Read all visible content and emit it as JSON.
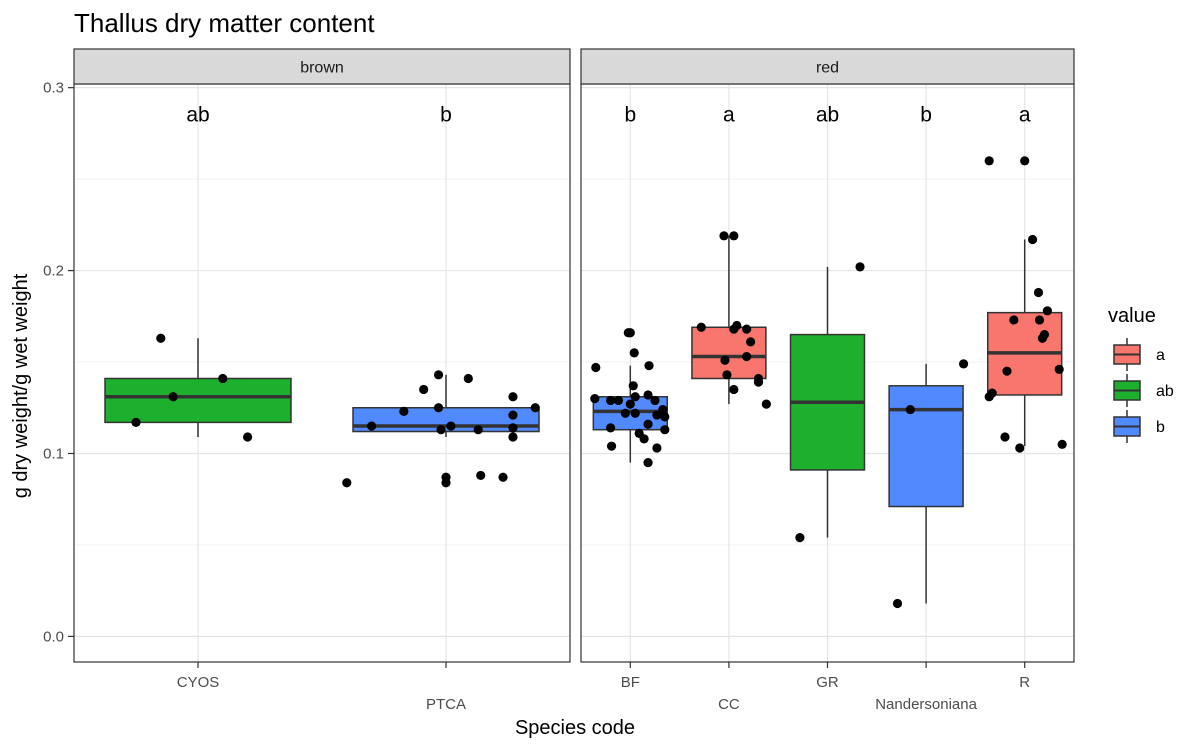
{
  "chart_data": {
    "type": "box",
    "title": "Thallus dry matter content",
    "xlabel": "Species code",
    "ylabel": "g dry weight/g wet weight",
    "ylim": [
      -0.014,
      0.302
    ],
    "yticks": [
      0.0,
      0.1,
      0.2,
      0.3
    ],
    "ytick_labels": [
      "0.0",
      "0.1",
      "0.2",
      "0.3"
    ],
    "grid": true,
    "legend": {
      "title": "value",
      "placement": "right",
      "entries": [
        {
          "label": "a",
          "color": "#F8766D"
        },
        {
          "label": "ab",
          "color": "#1DB02E"
        },
        {
          "label": "b",
          "color": "#5189FF"
        }
      ]
    },
    "panels": [
      {
        "strip": "brown",
        "categories": [
          "CYOS",
          "PTCA"
        ],
        "boxes": [
          {
            "category": "CYOS",
            "group": "ab",
            "sig": "ab",
            "q1": 0.117,
            "median": 0.131,
            "q3": 0.141,
            "whisker_low": 0.109,
            "whisker_high": 0.163,
            "points": [
              {
                "dx": -0.25,
                "y": 0.117
              },
              {
                "dx": -0.1,
                "y": 0.131
              },
              {
                "dx": 0.1,
                "y": 0.141
              },
              {
                "dx": 0.2,
                "y": 0.109
              },
              {
                "dx": -0.15,
                "y": 0.163
              }
            ]
          },
          {
            "category": "PTCA",
            "group": "b",
            "sig": "b",
            "q1": 0.112,
            "median": 0.115,
            "q3": 0.125,
            "whisker_low": 0.109,
            "whisker_high": 0.143,
            "points": [
              {
                "dx": -0.4,
                "y": 0.084
              },
              {
                "dx": -0.3,
                "y": 0.115
              },
              {
                "dx": -0.17,
                "y": 0.123
              },
              {
                "dx": -0.09,
                "y": 0.135
              },
              {
                "dx": -0.03,
                "y": 0.143
              },
              {
                "dx": -0.03,
                "y": 0.125
              },
              {
                "dx": 0.0,
                "y": 0.087
              },
              {
                "dx": 0.0,
                "y": 0.084
              },
              {
                "dx": -0.02,
                "y": 0.113
              },
              {
                "dx": 0.02,
                "y": 0.115
              },
              {
                "dx": 0.09,
                "y": 0.141
              },
              {
                "dx": 0.13,
                "y": 0.113
              },
              {
                "dx": 0.14,
                "y": 0.088
              },
              {
                "dx": 0.23,
                "y": 0.087
              },
              {
                "dx": 0.27,
                "y": 0.131
              },
              {
                "dx": 0.27,
                "y": 0.121
              },
              {
                "dx": 0.27,
                "y": 0.114
              },
              {
                "dx": 0.27,
                "y": 0.109
              },
              {
                "dx": 0.36,
                "y": 0.125
              }
            ]
          }
        ]
      },
      {
        "strip": "red",
        "categories": [
          "BF",
          "CC",
          "GR",
          "Nandersoniana",
          "R"
        ],
        "boxes": [
          {
            "category": "BF",
            "group": "b",
            "sig": "b",
            "q1": 0.113,
            "median": 0.123,
            "q3": 0.131,
            "whisker_low": 0.095,
            "whisker_high": 0.148,
            "points": [
              {
                "dx": -0.35,
                "y": 0.147
              },
              {
                "dx": -0.36,
                "y": 0.13
              },
              {
                "dx": -0.2,
                "y": 0.129
              },
              {
                "dx": -0.12,
                "y": 0.129
              },
              {
                "dx": -0.2,
                "y": 0.114
              },
              {
                "dx": -0.19,
                "y": 0.104
              },
              {
                "dx": -0.02,
                "y": 0.166
              },
              {
                "dx": 0.0,
                "y": 0.166
              },
              {
                "dx": 0.04,
                "y": 0.155
              },
              {
                "dx": 0.03,
                "y": 0.137
              },
              {
                "dx": 0.0,
                "y": 0.127
              },
              {
                "dx": -0.05,
                "y": 0.122
              },
              {
                "dx": 0.05,
                "y": 0.131
              },
              {
                "dx": 0.05,
                "y": 0.122
              },
              {
                "dx": 0.09,
                "y": 0.111
              },
              {
                "dx": 0.14,
                "y": 0.108
              },
              {
                "dx": 0.18,
                "y": 0.132
              },
              {
                "dx": 0.18,
                "y": 0.116
              },
              {
                "dx": 0.18,
                "y": 0.095
              },
              {
                "dx": 0.19,
                "y": 0.148
              },
              {
                "dx": 0.25,
                "y": 0.129
              },
              {
                "dx": 0.27,
                "y": 0.121
              },
              {
                "dx": 0.27,
                "y": 0.103
              },
              {
                "dx": 0.33,
                "y": 0.124
              },
              {
                "dx": 0.35,
                "y": 0.113
              },
              {
                "dx": 0.35,
                "y": 0.12
              }
            ]
          },
          {
            "category": "CC",
            "group": "a",
            "sig": "a",
            "q1": 0.141,
            "median": 0.153,
            "q3": 0.169,
            "whisker_low": 0.127,
            "whisker_high": 0.219,
            "points": [
              {
                "dx": -0.28,
                "y": 0.169
              },
              {
                "dx": -0.05,
                "y": 0.219
              },
              {
                "dx": 0.05,
                "y": 0.219
              },
              {
                "dx": 0.08,
                "y": 0.17
              },
              {
                "dx": -0.04,
                "y": 0.151
              },
              {
                "dx": -0.02,
                "y": 0.143
              },
              {
                "dx": 0.05,
                "y": 0.135
              },
              {
                "dx": 0.05,
                "y": 0.168
              },
              {
                "dx": 0.18,
                "y": 0.168
              },
              {
                "dx": 0.18,
                "y": 0.153
              },
              {
                "dx": 0.22,
                "y": 0.161
              },
              {
                "dx": 0.3,
                "y": 0.141
              },
              {
                "dx": 0.3,
                "y": 0.139
              },
              {
                "dx": 0.38,
                "y": 0.127
              }
            ]
          },
          {
            "category": "GR",
            "group": "ab",
            "sig": "ab",
            "q1": 0.091,
            "median": 0.128,
            "q3": 0.165,
            "whisker_low": 0.054,
            "whisker_high": 0.202,
            "points": [
              {
                "dx": -0.28,
                "y": 0.054
              },
              {
                "dx": 0.33,
                "y": 0.202
              }
            ]
          },
          {
            "category": "Nandersoniana",
            "group": "b",
            "sig": "b",
            "q1": 0.071,
            "median": 0.124,
            "q3": 0.137,
            "whisker_low": 0.018,
            "whisker_high": 0.149,
            "points": [
              {
                "dx": -0.29,
                "y": 0.018
              },
              {
                "dx": -0.16,
                "y": 0.124
              },
              {
                "dx": 0.38,
                "y": 0.149
              }
            ]
          },
          {
            "category": "R",
            "group": "a",
            "sig": "a",
            "q1": 0.132,
            "median": 0.155,
            "q3": 0.177,
            "whisker_low": 0.104,
            "whisker_high": 0.217,
            "points": [
              {
                "dx": -0.36,
                "y": 0.26
              },
              {
                "dx": 0.0,
                "y": 0.26
              },
              {
                "dx": 0.08,
                "y": 0.217
              },
              {
                "dx": 0.14,
                "y": 0.188
              },
              {
                "dx": 0.23,
                "y": 0.178
              },
              {
                "dx": 0.2,
                "y": 0.165
              },
              {
                "dx": 0.18,
                "y": 0.163
              },
              {
                "dx": 0.15,
                "y": 0.173
              },
              {
                "dx": 0.35,
                "y": 0.146
              },
              {
                "dx": -0.2,
                "y": 0.109
              },
              {
                "dx": -0.05,
                "y": 0.103
              },
              {
                "dx": -0.36,
                "y": 0.131
              },
              {
                "dx": -0.33,
                "y": 0.133
              },
              {
                "dx": -0.18,
                "y": 0.145
              },
              {
                "dx": -0.11,
                "y": 0.173
              },
              {
                "dx": 0.38,
                "y": 0.105
              }
            ]
          }
        ]
      }
    ]
  }
}
